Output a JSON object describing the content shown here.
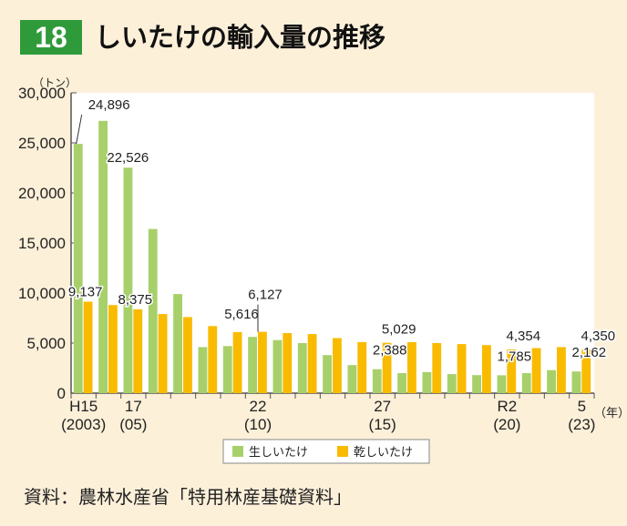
{
  "header": {
    "number": "18",
    "title": "しいたけの輸入量の推移"
  },
  "source": "資料：農林水産省「特用林産基礎資料」",
  "chart_data": {
    "type": "bar",
    "title": "しいたけの輸入量の推移",
    "ylabel": "（トン）",
    "xlabel": "（年）",
    "ylim": [
      0,
      30000
    ],
    "yticks": [
      "0",
      "5,000",
      "10,000",
      "15,000",
      "20,000",
      "25,000",
      "30,000"
    ],
    "x": [
      2003,
      2004,
      2005,
      2006,
      2007,
      2008,
      2009,
      2010,
      2011,
      2012,
      2013,
      2014,
      2015,
      2016,
      2017,
      2018,
      2019,
      2020,
      2021,
      2022,
      2023
    ],
    "xtick_labels": [
      {
        "year": 2003,
        "l1": "H15",
        "l2": "(2003)"
      },
      {
        "year": 2005,
        "l1": "17",
        "l2": "(05)"
      },
      {
        "year": 2010,
        "l1": "22",
        "l2": "(10)"
      },
      {
        "year": 2015,
        "l1": "27",
        "l2": "(15)"
      },
      {
        "year": 2020,
        "l1": "R2",
        "l2": "(20)"
      },
      {
        "year": 2023,
        "l1": "5",
        "l2": "(23)"
      }
    ],
    "series": [
      {
        "name": "生しいたけ",
        "color": "#a8d06a",
        "values": [
          24896,
          27200,
          22526,
          16400,
          9900,
          4600,
          4700,
          5616,
          5300,
          5000,
          3800,
          2800,
          2388,
          2000,
          2100,
          1900,
          1800,
          1785,
          2000,
          2300,
          2162
        ]
      },
      {
        "name": "乾しいたけ",
        "color": "#f9bb00",
        "values": [
          9137,
          8800,
          8375,
          7900,
          7600,
          6700,
          6100,
          6127,
          6000,
          5900,
          5500,
          5100,
          5029,
          5100,
          5000,
          4900,
          4800,
          4354,
          4500,
          4600,
          4350
        ]
      }
    ],
    "data_labels": [
      {
        "series": 0,
        "year": 2003,
        "text": "24,896"
      },
      {
        "series": 1,
        "year": 2003,
        "text": "9,137"
      },
      {
        "series": 0,
        "year": 2005,
        "text": "22,526"
      },
      {
        "series": 1,
        "year": 2005,
        "text": "8,375"
      },
      {
        "series": 0,
        "year": 2010,
        "text": "5,616"
      },
      {
        "series": 1,
        "year": 2010,
        "text": "6,127"
      },
      {
        "series": 0,
        "year": 2015,
        "text": "2,388"
      },
      {
        "series": 1,
        "year": 2015,
        "text": "5,029"
      },
      {
        "series": 0,
        "year": 2020,
        "text": "1,785"
      },
      {
        "series": 1,
        "year": 2020,
        "text": "4,354"
      },
      {
        "series": 0,
        "year": 2023,
        "text": "2,162"
      },
      {
        "series": 1,
        "year": 2023,
        "text": "4,350"
      }
    ],
    "legend": "bottom-center"
  }
}
